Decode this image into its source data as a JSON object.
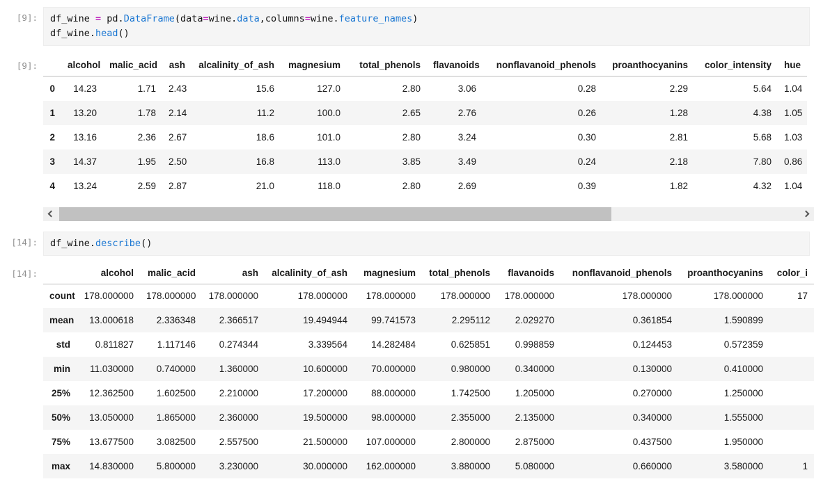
{
  "colors": {
    "code_function": "#1976d2",
    "code_operator": "#bf26bf",
    "cell_background": "#f5f5f5",
    "row_stripe": "#f5f5f5",
    "prompt_text": "#8f8f8f",
    "scrollbar_track": "#f0f0f0",
    "scrollbar_thumb": "#c1c1c1"
  },
  "cell1": {
    "prompt": "[9]:",
    "lines": [
      [
        {
          "t": "df_wine "
        },
        {
          "t": "=",
          "c": "op"
        },
        {
          "t": " pd."
        },
        {
          "t": "DataFrame",
          "c": "fn"
        },
        {
          "t": "(data"
        },
        {
          "t": "=",
          "c": "op"
        },
        {
          "t": "wine."
        },
        {
          "t": "data",
          "c": "fn"
        },
        {
          "t": ",columns"
        },
        {
          "t": "=",
          "c": "op"
        },
        {
          "t": "wine."
        },
        {
          "t": "feature_names",
          "c": "fn"
        },
        {
          "t": ")"
        }
      ],
      [
        {
          "t": "df_wine."
        },
        {
          "t": "head",
          "c": "fn"
        },
        {
          "t": "()"
        }
      ]
    ]
  },
  "output1": {
    "prompt": "[9]:",
    "table": {
      "headers": [
        "",
        "alcohol",
        "malic_acid",
        "ash",
        "alcalinity_of_ash",
        "magnesium",
        "total_phenols",
        "flavanoids",
        "nonflavanoid_phenols",
        "proanthocyanins",
        "color_intensity",
        "hue"
      ],
      "rows": [
        {
          "label": "0",
          "cells": [
            "14.23",
            "1.71",
            "2.43",
            "15.6",
            "127.0",
            "2.80",
            "3.06",
            "0.28",
            "2.29",
            "5.64",
            "1.04"
          ]
        },
        {
          "label": "1",
          "cells": [
            "13.20",
            "1.78",
            "2.14",
            "11.2",
            "100.0",
            "2.65",
            "2.76",
            "0.26",
            "1.28",
            "4.38",
            "1.05"
          ]
        },
        {
          "label": "2",
          "cells": [
            "13.16",
            "2.36",
            "2.67",
            "18.6",
            "101.0",
            "2.80",
            "3.24",
            "0.30",
            "2.81",
            "5.68",
            "1.03"
          ]
        },
        {
          "label": "3",
          "cells": [
            "14.37",
            "1.95",
            "2.50",
            "16.8",
            "113.0",
            "3.85",
            "3.49",
            "0.24",
            "2.18",
            "7.80",
            "0.86"
          ]
        },
        {
          "label": "4",
          "cells": [
            "13.24",
            "2.59",
            "2.87",
            "21.0",
            "118.0",
            "2.80",
            "2.69",
            "0.39",
            "1.82",
            "4.32",
            "1.04"
          ]
        }
      ]
    }
  },
  "cell2": {
    "prompt": "[14]:",
    "lines": [
      [
        {
          "t": "df_wine."
        },
        {
          "t": "describe",
          "c": "fn"
        },
        {
          "t": "()"
        }
      ]
    ]
  },
  "output2": {
    "prompt": "[14]:",
    "table": {
      "headers": [
        "",
        "alcohol",
        "malic_acid",
        "ash",
        "alcalinity_of_ash",
        "magnesium",
        "total_phenols",
        "flavanoids",
        "nonflavanoid_phenols",
        "proanthocyanins",
        "color_i"
      ],
      "rows": [
        {
          "label": "count",
          "cells": [
            "178.000000",
            "178.000000",
            "178.000000",
            "178.000000",
            "178.000000",
            "178.000000",
            "178.000000",
            "178.000000",
            "178.000000",
            "17"
          ]
        },
        {
          "label": "mean",
          "cells": [
            "13.000618",
            "2.336348",
            "2.366517",
            "19.494944",
            "99.741573",
            "2.295112",
            "2.029270",
            "0.361854",
            "1.590899",
            ""
          ]
        },
        {
          "label": "std",
          "cells": [
            "0.811827",
            "1.117146",
            "0.274344",
            "3.339564",
            "14.282484",
            "0.625851",
            "0.998859",
            "0.124453",
            "0.572359",
            ""
          ]
        },
        {
          "label": "min",
          "cells": [
            "11.030000",
            "0.740000",
            "1.360000",
            "10.600000",
            "70.000000",
            "0.980000",
            "0.340000",
            "0.130000",
            "0.410000",
            ""
          ]
        },
        {
          "label": "25%",
          "cells": [
            "12.362500",
            "1.602500",
            "2.210000",
            "17.200000",
            "88.000000",
            "1.742500",
            "1.205000",
            "0.270000",
            "1.250000",
            ""
          ]
        },
        {
          "label": "50%",
          "cells": [
            "13.050000",
            "1.865000",
            "2.360000",
            "19.500000",
            "98.000000",
            "2.355000",
            "2.135000",
            "0.340000",
            "1.555000",
            ""
          ]
        },
        {
          "label": "75%",
          "cells": [
            "13.677500",
            "3.082500",
            "2.557500",
            "21.500000",
            "107.000000",
            "2.800000",
            "2.875000",
            "0.437500",
            "1.950000",
            ""
          ]
        },
        {
          "label": "max",
          "cells": [
            "14.830000",
            "5.800000",
            "3.230000",
            "30.000000",
            "162.000000",
            "3.880000",
            "5.080000",
            "0.660000",
            "3.580000",
            "1"
          ]
        }
      ]
    }
  }
}
